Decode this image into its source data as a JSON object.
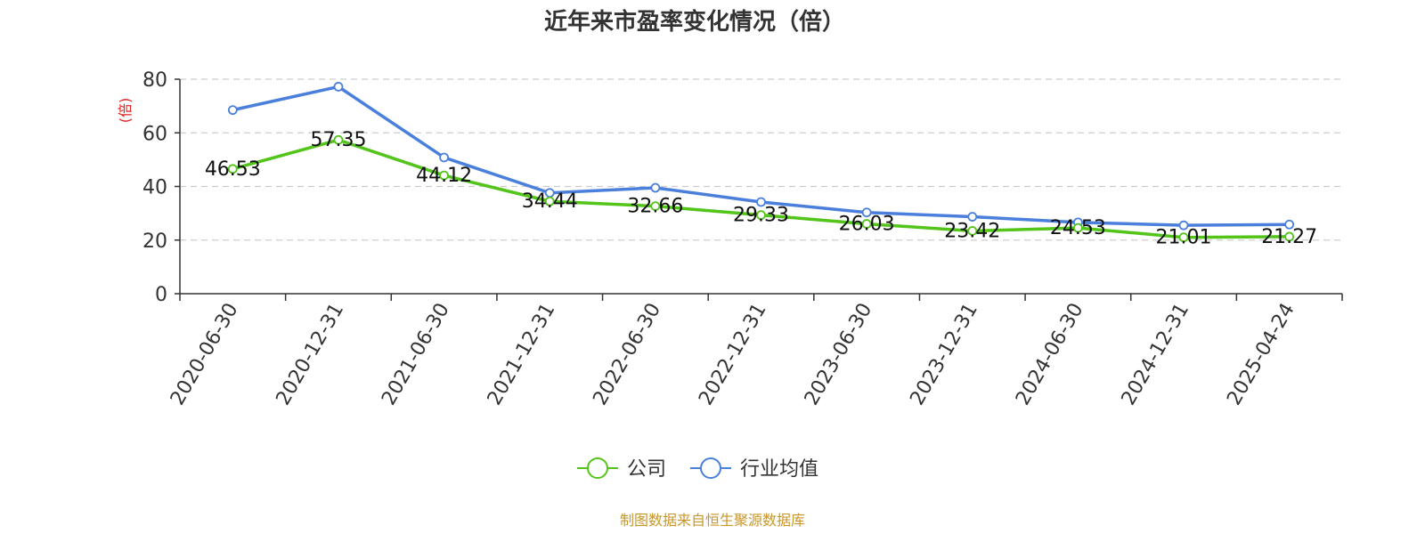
{
  "chart_data": {
    "type": "line",
    "title": "近年来市盈率变化情况（倍）",
    "ylabel": "(倍)",
    "xlabel": "",
    "categories": [
      "2020-06-30",
      "2020-12-31",
      "2021-06-30",
      "2021-12-31",
      "2022-06-30",
      "2022-12-31",
      "2023-06-30",
      "2023-12-31",
      "2024-06-30",
      "2024-12-31",
      "2025-04-24"
    ],
    "ylim": [
      0,
      80
    ],
    "yticks": [
      0,
      20,
      40,
      60,
      80
    ],
    "grid": true,
    "legend_position": "bottom-center",
    "series": [
      {
        "name": "公司",
        "color": "#52c41a",
        "values": [
          46.53,
          57.35,
          44.12,
          34.44,
          32.66,
          29.33,
          26.03,
          23.42,
          24.53,
          21.01,
          21.27
        ],
        "labels": [
          "46.53",
          "57.35",
          "44.12",
          "34.44",
          "32.66",
          "29.33",
          "26.03",
          "23.42",
          "24.53",
          "21.01",
          "21.27"
        ]
      },
      {
        "name": "行业均值",
        "color": "#4a7fdc",
        "values": [
          68.5,
          77.2,
          50.8,
          37.6,
          39.5,
          34.2,
          30.3,
          28.7,
          26.6,
          25.5,
          25.8
        ]
      }
    ]
  },
  "source": {
    "text": "制图数据来自恒生聚源数据库",
    "color": "#c8962a"
  },
  "ylabel_color": "#e02020"
}
